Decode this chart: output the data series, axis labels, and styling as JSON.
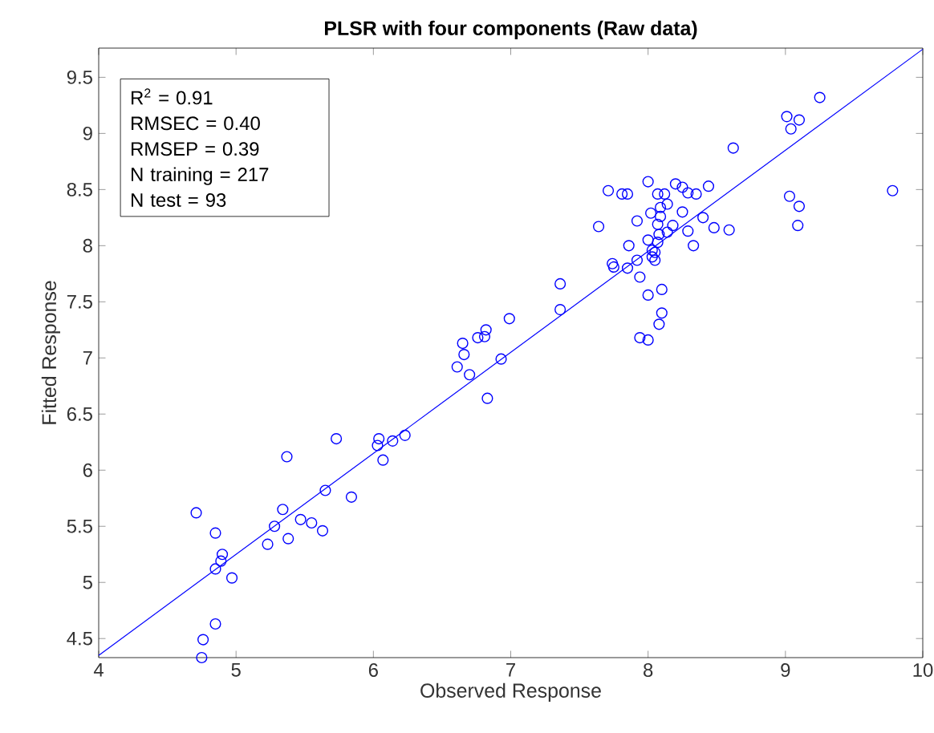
{
  "chart_data": {
    "type": "scatter",
    "title": "PLSR with four components (Raw data)",
    "xlabel": "Observed Response",
    "ylabel": "Fitted Response",
    "xlim": [
      4,
      10
    ],
    "ylim": [
      4.33,
      9.76
    ],
    "xticks": [
      4,
      5,
      6,
      7,
      8,
      9,
      10
    ],
    "yticks": [
      4.5,
      5,
      5.5,
      6,
      6.5,
      7,
      7.5,
      8,
      8.5,
      9,
      9.5
    ],
    "grid": false,
    "annotations": [
      "R$^{2}$ = 0.91",
      "RMSEC = 0.40",
      "RMSEP = 0.39",
      "N training = 217",
      "N test = 93"
    ],
    "series": [
      {
        "marker": "circle",
        "color": "#0000ff",
        "x": [
          4.71,
          4.85,
          4.9,
          4.89,
          4.85,
          4.97,
          4.85,
          4.76,
          4.75,
          5.23,
          5.28,
          5.34,
          5.38,
          5.37,
          5.47,
          5.55,
          5.63,
          5.65,
          5.73,
          5.84,
          6.03,
          6.04,
          6.07,
          6.14,
          6.23,
          6.83,
          7.36,
          7.36,
          6.99,
          6.82,
          6.76,
          6.81,
          6.65,
          6.66,
          6.61,
          6.7,
          6.93,
          8.62,
          9.01,
          9.04,
          9.1,
          9.25,
          9.78,
          9.03,
          9.1,
          9.09,
          7.64,
          7.71,
          7.81,
          7.85,
          8.0,
          8.2,
          8.25,
          8.29,
          8.35,
          8.44,
          8.07,
          8.12,
          8.14,
          8.09,
          8.02,
          8.25,
          7.92,
          8.09,
          8.07,
          8.18,
          8.4,
          8.48,
          8.59,
          8.29,
          8.14,
          8.08,
          8.0,
          8.07,
          8.33,
          7.86,
          8.03,
          8.05,
          8.03,
          8.05,
          7.92,
          7.74,
          7.75,
          7.85,
          7.94,
          8.0,
          8.1,
          8.1,
          8.08,
          7.94,
          8.0
        ],
        "values": [
          5.62,
          5.44,
          5.25,
          5.19,
          5.12,
          5.04,
          4.63,
          4.49,
          4.33,
          5.34,
          5.5,
          5.65,
          5.39,
          6.12,
          5.56,
          5.53,
          5.46,
          5.82,
          6.28,
          5.76,
          6.22,
          6.28,
          6.09,
          6.26,
          6.31,
          6.64,
          7.66,
          7.43,
          7.35,
          7.25,
          7.18,
          7.19,
          7.13,
          7.03,
          6.92,
          6.85,
          6.99,
          8.87,
          9.15,
          9.04,
          9.12,
          9.32,
          8.49,
          8.44,
          8.35,
          8.18,
          8.17,
          8.49,
          8.46,
          8.46,
          8.57,
          8.55,
          8.52,
          8.47,
          8.46,
          8.53,
          8.46,
          8.46,
          8.37,
          8.34,
          8.29,
          8.3,
          8.22,
          8.26,
          8.19,
          8.18,
          8.25,
          8.16,
          8.14,
          8.13,
          8.12,
          8.1,
          8.05,
          8.03,
          8.0,
          8.0,
          7.96,
          7.94,
          7.9,
          7.87,
          7.87,
          7.84,
          7.81,
          7.8,
          7.72,
          7.56,
          7.61,
          7.4,
          7.3,
          7.18,
          7.16
        ]
      },
      {
        "type": "line",
        "marker": "none",
        "color": "#0000ff",
        "x": [
          4,
          10
        ],
        "values": [
          4.35,
          9.75
        ]
      }
    ]
  }
}
